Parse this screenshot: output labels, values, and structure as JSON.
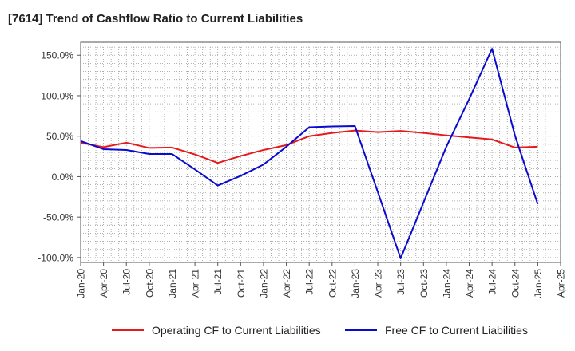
{
  "chart_data": {
    "type": "line",
    "title": "[7614]  Trend of Cashflow Ratio to Current Liabilities",
    "xlabel": "",
    "ylabel": "",
    "x": [
      "Jan-20",
      "Apr-20",
      "Jul-20",
      "Oct-20",
      "Jan-21",
      "Apr-21",
      "Jul-21",
      "Oct-21",
      "Jan-22",
      "Apr-22",
      "Jul-22",
      "Oct-22",
      "Jan-23",
      "Apr-23",
      "Jul-23",
      "Oct-23",
      "Jan-24",
      "Apr-24",
      "Jul-24",
      "Oct-24",
      "Jan-25"
    ],
    "x_ticks": [
      "Jan-20",
      "Apr-20",
      "Jul-20",
      "Oct-20",
      "Jan-21",
      "Apr-21",
      "Jul-21",
      "Oct-21",
      "Jan-22",
      "Apr-22",
      "Jul-22",
      "Oct-22",
      "Jan-23",
      "Apr-23",
      "Jul-23",
      "Oct-23",
      "Jan-24",
      "Apr-24",
      "Jul-24",
      "Oct-24",
      "Jan-25",
      "Apr-25"
    ],
    "y_ticks": [
      150,
      100,
      50,
      0,
      -50,
      -100
    ],
    "y_tick_labels": [
      "150.0%",
      "100.0%",
      "50.0%",
      "0.0%",
      "-50.0%",
      "-100.0%"
    ],
    "ylim": [
      -106,
      166
    ],
    "grid": true,
    "legend_position": "bottom",
    "series": [
      {
        "name": "Operating CF to Current Liabilities",
        "color": "#e41a1c",
        "values": [
          42,
          36.5,
          42,
          35.5,
          36,
          27.5,
          17,
          25.5,
          33,
          39,
          50,
          54,
          57,
          55,
          56.5,
          54,
          51,
          48.5,
          46,
          36,
          37
        ]
      },
      {
        "name": "Free CF to Current Liabilities",
        "color": "#0a0ad0",
        "values": [
          44,
          34,
          33,
          28,
          28,
          9,
          -11,
          1,
          15,
          37,
          61,
          62,
          62.5,
          -19,
          -101,
          -32,
          37,
          96,
          158,
          51,
          -34
        ]
      }
    ]
  }
}
